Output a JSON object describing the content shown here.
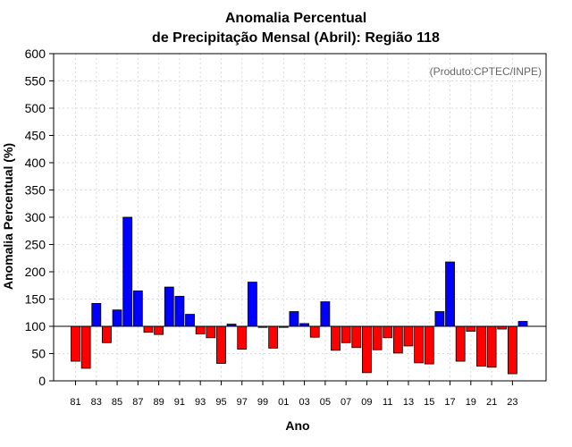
{
  "chart_data": {
    "type": "bar",
    "title_line1": "Anomalia Percentual",
    "title_line2": "de Precipitação Mensal (Abril): Região 118",
    "credit": "(Produto:CPTEC/INPE)",
    "xlabel": "Ano",
    "ylabel": "Anomalia Percentual (%)",
    "ylim": [
      0,
      600
    ],
    "yticks": [
      0,
      50,
      100,
      150,
      200,
      250,
      300,
      350,
      400,
      450,
      500,
      550,
      600
    ],
    "baseline": 100,
    "grid": true,
    "colors": {
      "above": "#0000ff",
      "below": "#ff0000",
      "edge": "#000000",
      "grid": "#d9d9d9"
    },
    "x_tick_labels": [
      "81",
      "83",
      "85",
      "87",
      "89",
      "91",
      "93",
      "95",
      "97",
      "99",
      "01",
      "03",
      "05",
      "07",
      "09",
      "11",
      "13",
      "15",
      "17",
      "19",
      "21",
      "23"
    ],
    "categories": [
      "1981",
      "1982",
      "1983",
      "1984",
      "1985",
      "1986",
      "1987",
      "1988",
      "1989",
      "1990",
      "1991",
      "1992",
      "1993",
      "1994",
      "1995",
      "1996",
      "1997",
      "1998",
      "1999",
      "2000",
      "2001",
      "2002",
      "2003",
      "2004",
      "2005",
      "2006",
      "2007",
      "2008",
      "2009",
      "2010",
      "2011",
      "2012",
      "2013",
      "2014",
      "2015",
      "2016",
      "2017",
      "2018",
      "2019",
      "2020",
      "2021",
      "2022",
      "2023",
      "2024"
    ],
    "values": [
      36,
      23,
      142,
      70,
      130,
      300,
      165,
      89,
      85,
      172,
      155,
      122,
      86,
      79,
      32,
      104,
      58,
      181,
      98,
      60,
      98,
      127,
      105,
      80,
      145,
      56,
      70,
      61,
      15,
      57,
      79,
      51,
      64,
      33,
      31,
      127,
      218,
      36,
      91,
      27,
      25,
      95,
      13,
      109
    ]
  }
}
